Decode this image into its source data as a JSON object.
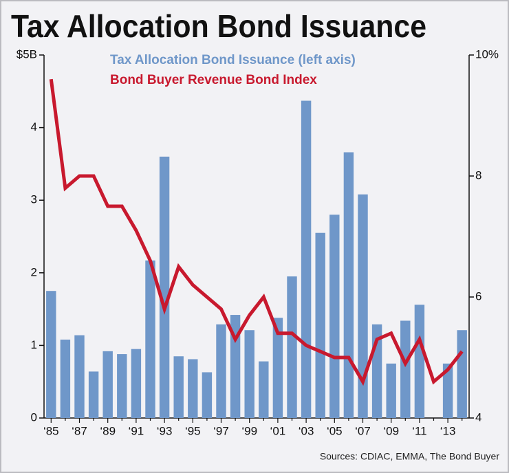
{
  "chart_data": {
    "type": "bar",
    "title": "Tax Allocation Bond Issuance",
    "source": "Sources: CDIAC, EMMA, The Bond Buyer",
    "categories": [
      "‘85",
      null,
      "‘87",
      null,
      "‘89",
      null,
      "‘91",
      null,
      "‘93",
      null,
      "‘95",
      null,
      "‘97",
      null,
      "‘99",
      null,
      "‘01",
      null,
      "‘03",
      null,
      "‘05",
      null,
      "‘07",
      null,
      "‘09",
      null,
      "‘11",
      null,
      "‘13",
      null
    ],
    "series": [
      {
        "name": "Tax Allocation Bond Issuance (left axis)",
        "type": "bar",
        "color": "#6f97c9",
        "values": [
          1.75,
          1.08,
          1.14,
          0.64,
          0.92,
          0.88,
          0.95,
          2.17,
          3.6,
          0.85,
          0.81,
          0.63,
          1.29,
          1.42,
          1.21,
          0.78,
          1.38,
          1.95,
          4.37,
          2.55,
          2.8,
          3.66,
          3.08,
          1.29,
          0.75,
          1.34,
          1.56,
          null,
          0.75,
          1.21
        ]
      },
      {
        "name": "Bond Buyer Revenue Bond Index",
        "type": "line",
        "axis": "y2",
        "color": "#c8192e",
        "values": [
          9.6,
          7.8,
          8.0,
          8.0,
          7.5,
          7.5,
          7.1,
          6.6,
          5.8,
          6.5,
          6.2,
          6.0,
          5.8,
          5.3,
          5.7,
          6.0,
          5.4,
          5.4,
          5.2,
          5.1,
          5.0,
          5.0,
          4.6,
          5.3,
          5.4,
          4.9,
          5.3,
          4.6,
          4.8,
          5.1
        ]
      }
    ],
    "ylim": [
      0,
      5
    ],
    "yticks": [
      0,
      1,
      2,
      3,
      4,
      {
        "value": 5,
        "label": "$5B"
      }
    ],
    "y2lim": [
      4,
      10
    ],
    "y2ticks": [
      4,
      6,
      8,
      {
        "value": 10,
        "label": "10%"
      }
    ],
    "grid": false
  }
}
